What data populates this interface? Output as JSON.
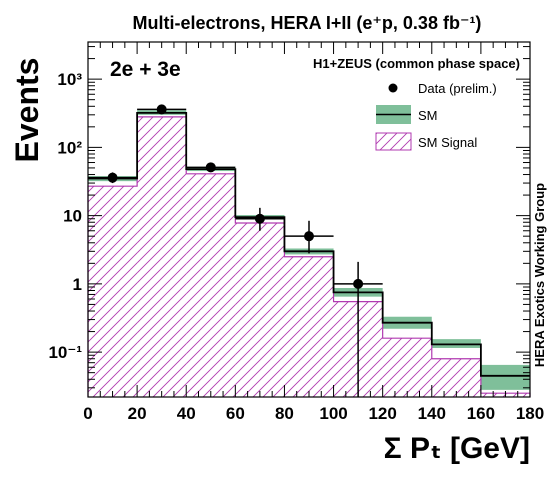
{
  "chart_data": {
    "type": "bar",
    "title": "Multi-electrons, HERA I+II (e⁺p, 0.38 fb⁻¹)",
    "channel_label": "2e + 3e",
    "collaboration_label": "H1+ZEUS (common phase space)",
    "side_label": "HERA Exotics Working Group",
    "xlabel": "Σ Pₜ [GeV]",
    "ylabel": "Events",
    "xlim": [
      0,
      180
    ],
    "ylim": [
      0.022,
      3500
    ],
    "yscale": "log",
    "x_ticks": [
      0,
      20,
      40,
      60,
      80,
      100,
      120,
      140,
      160,
      180
    ],
    "y_ticks": [
      {
        "value": 0.1,
        "label": "10⁻¹"
      },
      {
        "value": 1,
        "label": "1"
      },
      {
        "value": 10,
        "label": "10"
      },
      {
        "value": 100,
        "label": "10²"
      },
      {
        "value": 1000,
        "label": "10³"
      }
    ],
    "legend_placement": "top-right",
    "legend": [
      {
        "key": "data",
        "label": "Data (prelim.)"
      },
      {
        "key": "sm",
        "label": "SM"
      },
      {
        "key": "signal",
        "label": "SM Signal"
      }
    ],
    "bins": [
      [
        0,
        20
      ],
      [
        20,
        40
      ],
      [
        40,
        60
      ],
      [
        60,
        80
      ],
      [
        80,
        100
      ],
      [
        100,
        120
      ],
      [
        120,
        140
      ],
      [
        140,
        160
      ],
      [
        160,
        180
      ]
    ],
    "series": [
      {
        "key": "sm",
        "name": "SM",
        "values": [
          35,
          320,
          48,
          9.5,
          3.0,
          0.75,
          0.27,
          0.13,
          0.045
        ],
        "band_low": [
          32,
          300,
          45,
          8.8,
          2.7,
          0.65,
          0.22,
          0.115,
          0.028
        ],
        "band_high": [
          38,
          350,
          52,
          10.2,
          3.3,
          0.87,
          0.33,
          0.155,
          0.065
        ],
        "color": "#000000",
        "band_color": "#7fbf9a"
      },
      {
        "key": "signal",
        "name": "SM Signal",
        "values": [
          27,
          280,
          41,
          7.8,
          2.5,
          0.55,
          0.16,
          0.08,
          0.025
        ],
        "color": "#b03ab0"
      },
      {
        "key": "data",
        "name": "Data (prelim.)",
        "x": [
          10,
          30,
          50,
          70,
          90,
          110
        ],
        "values": [
          36,
          360,
          51,
          9,
          5,
          1
        ],
        "err_low": [
          6,
          19,
          7,
          3,
          2.2,
          1
        ],
        "err_high": [
          7,
          20,
          8,
          4,
          3.4,
          1.1
        ],
        "color": "#000000"
      }
    ]
  }
}
